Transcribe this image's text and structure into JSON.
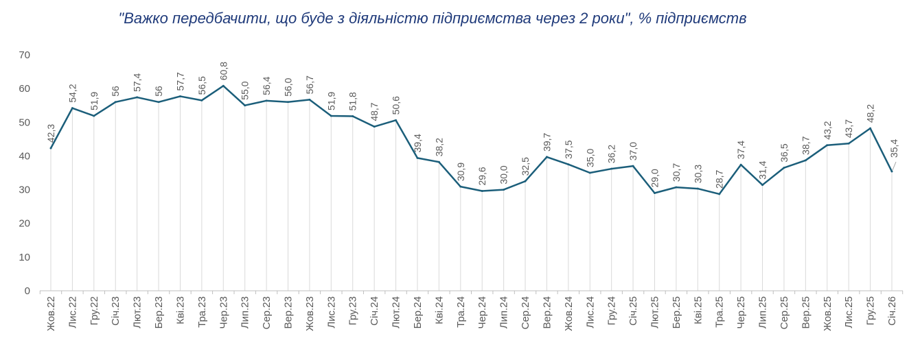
{
  "chart_data": {
    "type": "line",
    "title": "\"Важко передбачити, що буде з діяльністю підприємства через 2 роки\", % підприємств",
    "xlabel": "",
    "ylabel": "",
    "ylim": [
      0,
      70
    ],
    "yticks": [
      "0",
      "10",
      "20",
      "30",
      "40",
      "50",
      "60",
      "70"
    ],
    "grid": "vertical lines at categories",
    "line_color": "#1b5e7a",
    "categories": [
      "Жов.22",
      "Лис.22",
      "Гру.22",
      "Січ.23",
      "Лют.23",
      "Бер.23",
      "Кві.23",
      "Тра.23",
      "Чер.23",
      "Лип.23",
      "Сер.23",
      "Вер.23",
      "Жов.23",
      "Лис.23",
      "Гру.23",
      "Січ.24",
      "Лют.24",
      "Бер.24",
      "Кві.24",
      "Тра.24",
      "Чер.24",
      "Лип.24",
      "Сер.24",
      "Вер.24",
      "Жов.24",
      "Лис.24",
      "Гру.24",
      "Січ.25",
      "Лют.25",
      "Бер.25",
      "Кві.25",
      "Тра.25",
      "Чер.25",
      "Лип.25",
      "Сер.25",
      "Вер.25",
      "Жов.25",
      "Лис.25",
      "Гру.25",
      "Січ.26"
    ],
    "values": [
      42.3,
      54.2,
      51.9,
      56,
      57.4,
      56,
      57.7,
      56.5,
      60.8,
      55.0,
      56.4,
      56.0,
      56.7,
      51.9,
      51.8,
      48.7,
      50.6,
      39.4,
      38.2,
      30.9,
      29.6,
      30.0,
      32.5,
      39.7,
      37.5,
      35.0,
      36.2,
      37.0,
      29.0,
      30.7,
      30.3,
      28.7,
      37.4,
      31.4,
      36.5,
      38.7,
      43.2,
      43.7,
      48.2,
      35.4
    ],
    "data_labels": [
      "42,3",
      "54,2",
      "51,9",
      "56",
      "57,4",
      "56",
      "57,7",
      "56,5",
      "60,8",
      "55,0",
      "56,4",
      "56,0",
      "56,7",
      "51,9",
      "51,8",
      "48,7",
      "50,6",
      "39,4",
      "38,2",
      "30,9",
      "29,6",
      "30,0",
      "32,5",
      "39,7",
      "37,5",
      "35,0",
      "36,2",
      "37,0",
      "29,0",
      "30,7",
      "30,3",
      "28,7",
      "37,4",
      "31,4",
      "36,5",
      "38,7",
      "43,2",
      "43,7",
      "48,2",
      "35,4"
    ]
  }
}
